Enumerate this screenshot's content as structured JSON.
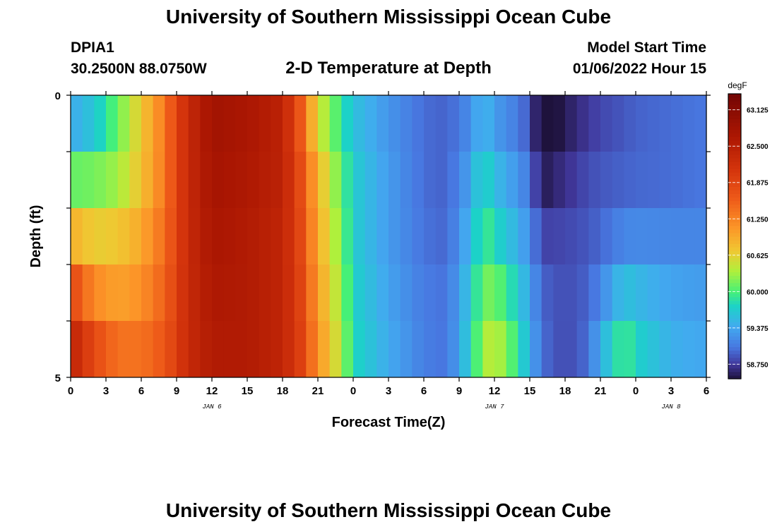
{
  "header": {
    "title": "University of Southern Mississippi Ocean Cube",
    "station": "DPIA1",
    "coords": "30.2500N  88.0750W",
    "subtitle": "2-D Temperature at Depth",
    "model_start_label": "Model Start Time",
    "model_start_value": "01/06/2022 Hour 15"
  },
  "footer": {
    "title": "University of Southern Mississippi Ocean Cube"
  },
  "chart_data": {
    "type": "heatmap",
    "xlabel": "Forecast Time(Z)",
    "ylabel": "Depth (ft)",
    "x_ticks": [
      "0",
      "3",
      "6",
      "9",
      "12",
      "15",
      "18",
      "21",
      "0",
      "3",
      "6",
      "9",
      "12",
      "15",
      "18",
      "21",
      "0",
      "3",
      "6"
    ],
    "y_ticks": [
      "0",
      "5"
    ],
    "ylim": [
      0,
      5
    ],
    "day_labels": [
      {
        "text": "JAN 6",
        "hour": 12
      },
      {
        "text": "JAN 7",
        "hour": 36
      },
      {
        "text": "JAN 8",
        "hour": 51
      }
    ],
    "colorbar": {
      "unit": "degF",
      "min": 58.5,
      "max": 63.4,
      "ticks": [
        63.125,
        62.5,
        61.875,
        61.25,
        60.625,
        60.0,
        59.375,
        58.75
      ],
      "tick_labels": [
        "63.125",
        "62.500",
        "61.875",
        "61.250",
        "60.625",
        "60.000",
        "59.375",
        "58.750"
      ]
    },
    "depth_rows": [
      0,
      1,
      2,
      3,
      4,
      5
    ],
    "keyframes_hours": [
      0,
      2,
      4,
      6,
      8,
      9,
      10,
      12,
      15,
      18,
      19.5,
      21,
      23,
      24,
      27,
      30,
      32,
      34,
      35,
      36,
      38,
      39,
      40,
      42,
      44,
      45,
      47,
      48,
      51,
      54
    ],
    "temperature_rows": [
      [
        59.0,
        59.5,
        60.2,
        60.8,
        61.4,
        61.9,
        62.3,
        62.8,
        62.7,
        62.4,
        61.5,
        60.3,
        59.8,
        59.5,
        59.2,
        59.0,
        58.95,
        59.1,
        59.3,
        59.1,
        58.95,
        58.8,
        58.3,
        58.55,
        58.7,
        58.8,
        58.9,
        58.95,
        59.0,
        59.05
      ],
      [
        59.8,
        59.8,
        60.0,
        60.6,
        61.3,
        61.9,
        62.3,
        62.8,
        62.7,
        62.5,
        61.8,
        60.8,
        60.0,
        59.7,
        59.3,
        59.0,
        58.95,
        59.3,
        59.8,
        59.5,
        59.2,
        59.0,
        58.4,
        58.6,
        58.8,
        58.85,
        58.9,
        58.95,
        59.0,
        59.05
      ],
      [
        60.4,
        60.5,
        60.6,
        60.9,
        61.4,
        61.9,
        62.3,
        62.7,
        62.6,
        62.4,
        61.8,
        60.9,
        60.1,
        59.7,
        59.3,
        59.0,
        58.95,
        59.4,
        59.9,
        59.6,
        59.3,
        59.1,
        58.7,
        58.8,
        58.9,
        58.95,
        59.0,
        59.0,
        59.0,
        59.05
      ],
      [
        61.4,
        60.8,
        60.8,
        61.0,
        61.5,
        61.9,
        62.3,
        62.7,
        62.6,
        62.4,
        61.9,
        61.0,
        60.2,
        59.7,
        59.3,
        59.05,
        59.0,
        59.6,
        60.1,
        60.0,
        59.6,
        59.3,
        58.9,
        58.85,
        58.9,
        59.0,
        59.3,
        59.35,
        59.3,
        59.25
      ],
      [
        62.3,
        61.6,
        61.2,
        61.3,
        61.6,
        62.0,
        62.3,
        62.6,
        62.6,
        62.4,
        61.9,
        61.1,
        60.3,
        59.8,
        59.4,
        59.1,
        59.05,
        59.7,
        60.2,
        60.3,
        59.8,
        59.4,
        59.0,
        58.85,
        59.0,
        59.3,
        59.9,
        59.7,
        59.4,
        59.35
      ],
      [
        62.6,
        62.0,
        61.6,
        61.5,
        61.7,
        62.0,
        62.3,
        62.6,
        62.6,
        62.4,
        62.0,
        61.2,
        60.4,
        59.8,
        59.4,
        59.1,
        59.0,
        59.8,
        60.4,
        60.6,
        60.0,
        59.5,
        59.0,
        58.8,
        59.0,
        59.6,
        60.1,
        59.8,
        59.5,
        59.4
      ]
    ]
  }
}
